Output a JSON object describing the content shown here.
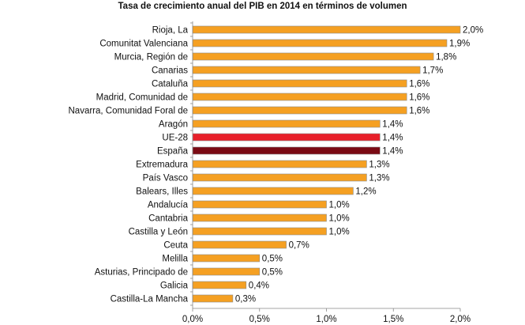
{
  "chart_data": {
    "type": "bar",
    "orientation": "horizontal",
    "title": "Tasa de crecimiento anual del PIB en 2014 en términos de volumen",
    "xlabel": "",
    "ylabel": "",
    "xlim": [
      0,
      2.0
    ],
    "x_ticks": [
      "0,0%",
      "0,5%",
      "1,0%",
      "1,5%",
      "2,0%"
    ],
    "x_tick_values": [
      0,
      0.5,
      1.0,
      1.5,
      2.0
    ],
    "grid": false,
    "legend": "none",
    "colors": {
      "default": "#F5A022",
      "ue28": "#E8202A",
      "espana": "#7A0A14",
      "bar_edge": "#8a8a8a"
    },
    "categories": [
      "Rioja, La",
      "Comunitat Valenciana",
      "Murcia, Región de",
      "Canarias",
      "Cataluña",
      "Madrid, Comunidad de",
      "Navarra, Comunidad Foral de",
      "Aragón",
      "UE-28",
      "España",
      "Extremadura",
      "País Vasco",
      "Balears, Illes",
      "Andalucía",
      "Cantabria",
      "Castilla y León",
      "Ceuta",
      "Melilla",
      "Asturias, Principado de",
      "Galicia",
      "Castilla-La Mancha"
    ],
    "values": [
      2.0,
      1.9,
      1.8,
      1.7,
      1.6,
      1.6,
      1.6,
      1.4,
      1.4,
      1.4,
      1.3,
      1.3,
      1.2,
      1.0,
      1.0,
      1.0,
      0.7,
      0.5,
      0.5,
      0.4,
      0.3
    ],
    "value_labels": [
      "2,0%",
      "1,9%",
      "1,8%",
      "1,7%",
      "1,6%",
      "1,6%",
      "1,6%",
      "1,4%",
      "1,4%",
      "1,4%",
      "1,3%",
      "1,3%",
      "1,2%",
      "1,0%",
      "1,0%",
      "1,0%",
      "0,7%",
      "0,5%",
      "0,5%",
      "0,4%",
      "0,3%"
    ],
    "bar_colors": [
      "default",
      "default",
      "default",
      "default",
      "default",
      "default",
      "default",
      "default",
      "ue28",
      "espana",
      "default",
      "default",
      "default",
      "default",
      "default",
      "default",
      "default",
      "default",
      "default",
      "default",
      "default"
    ]
  }
}
